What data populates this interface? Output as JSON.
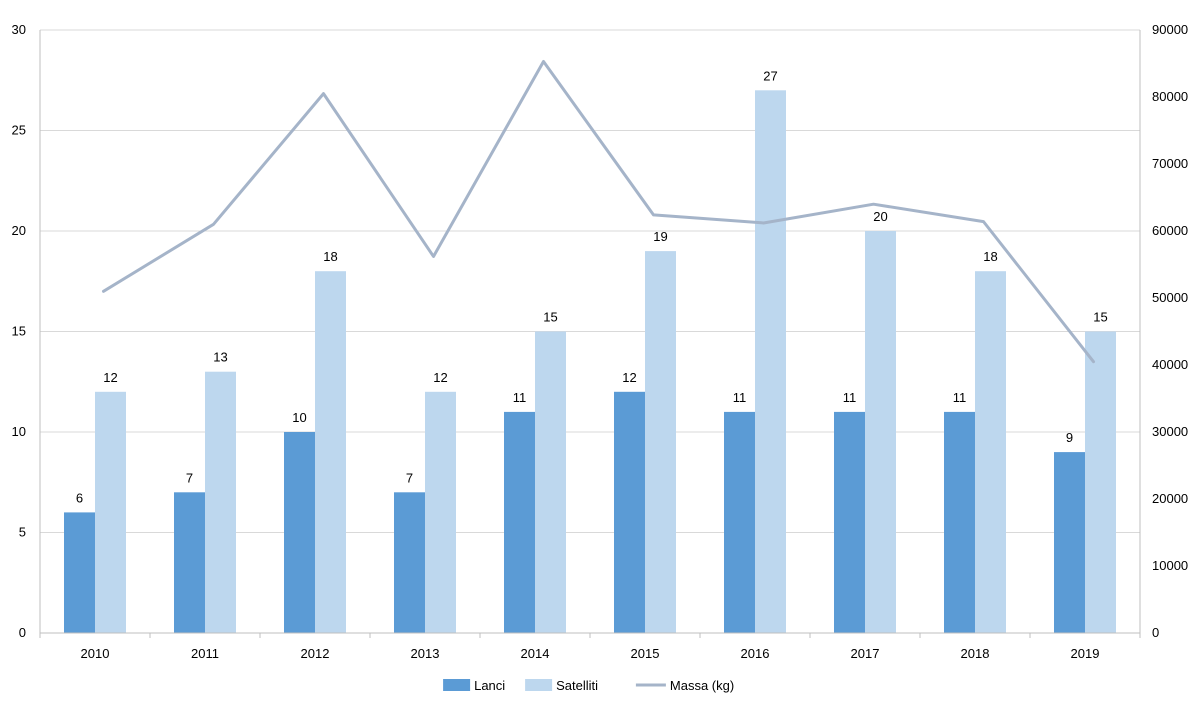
{
  "chart_data": {
    "type": "bar",
    "categories": [
      "2010",
      "2011",
      "2012",
      "2013",
      "2014",
      "2015",
      "2016",
      "2017",
      "2018",
      "2019"
    ],
    "series": [
      {
        "name": "Lanci",
        "kind": "bar",
        "axis": "left",
        "color": "#5b9bd5",
        "values": [
          6,
          7,
          10,
          7,
          11,
          12,
          11,
          11,
          11,
          9
        ]
      },
      {
        "name": "Satelliti",
        "kind": "bar",
        "axis": "left",
        "color": "#bdd7ee",
        "values": [
          12,
          13,
          18,
          12,
          15,
          19,
          27,
          20,
          18,
          15
        ]
      },
      {
        "name": "Massa (kg)",
        "kind": "line",
        "axis": "right",
        "color": "#a5b4c9",
        "values": [
          51000,
          61000,
          80500,
          56200,
          85300,
          62400,
          61200,
          64000,
          61400,
          40500
        ]
      }
    ],
    "y_left": {
      "min": 0,
      "max": 30,
      "ticks": [
        "0",
        "5",
        "10",
        "15",
        "20",
        "25",
        "30"
      ]
    },
    "y_right": {
      "min": 0,
      "max": 90000,
      "ticks": [
        "0",
        "10000",
        "20000",
        "30000",
        "40000",
        "50000",
        "60000",
        "70000",
        "80000",
        "90000"
      ]
    },
    "grid": true,
    "legend_position": "bottom",
    "data_labels": true
  }
}
